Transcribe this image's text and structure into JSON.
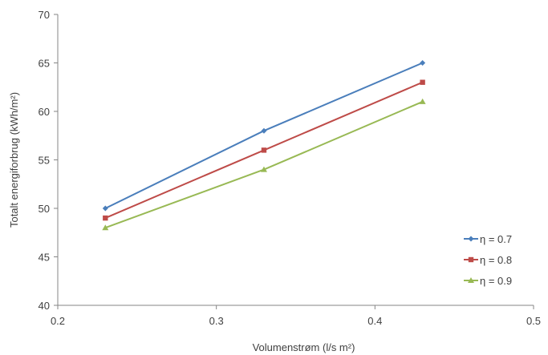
{
  "chart_data": {
    "type": "line",
    "title": "",
    "xlabel": "Volumenstrøm (l/s m²)",
    "ylabel": "Totalt energiforbrug (kWh/m²)",
    "xlim": [
      0.2,
      0.5
    ],
    "ylim": [
      40,
      70
    ],
    "x_ticks": [
      0.2,
      0.3,
      0.4,
      0.5
    ],
    "y_ticks": [
      40,
      45,
      50,
      55,
      60,
      65,
      70
    ],
    "x_tick_labels": [
      "0.2",
      "0.3",
      "0.4",
      "0.5"
    ],
    "y_tick_labels": [
      "40",
      "45",
      "50",
      "55",
      "60",
      "65",
      "70"
    ],
    "grid": false,
    "legend_position": "bottom-right",
    "series": [
      {
        "name": "η = 0.7",
        "color": "#4a7ebb",
        "marker": "diamond",
        "x": [
          0.23,
          0.33,
          0.43
        ],
        "y": [
          50,
          58,
          65
        ]
      },
      {
        "name": "η = 0.8",
        "color": "#be4b48",
        "marker": "square",
        "x": [
          0.23,
          0.33,
          0.43
        ],
        "y": [
          49,
          56,
          63
        ]
      },
      {
        "name": "η = 0.9",
        "color": "#98b954",
        "marker": "triangle",
        "x": [
          0.23,
          0.33,
          0.43
        ],
        "y": [
          48,
          54,
          61
        ]
      }
    ]
  }
}
